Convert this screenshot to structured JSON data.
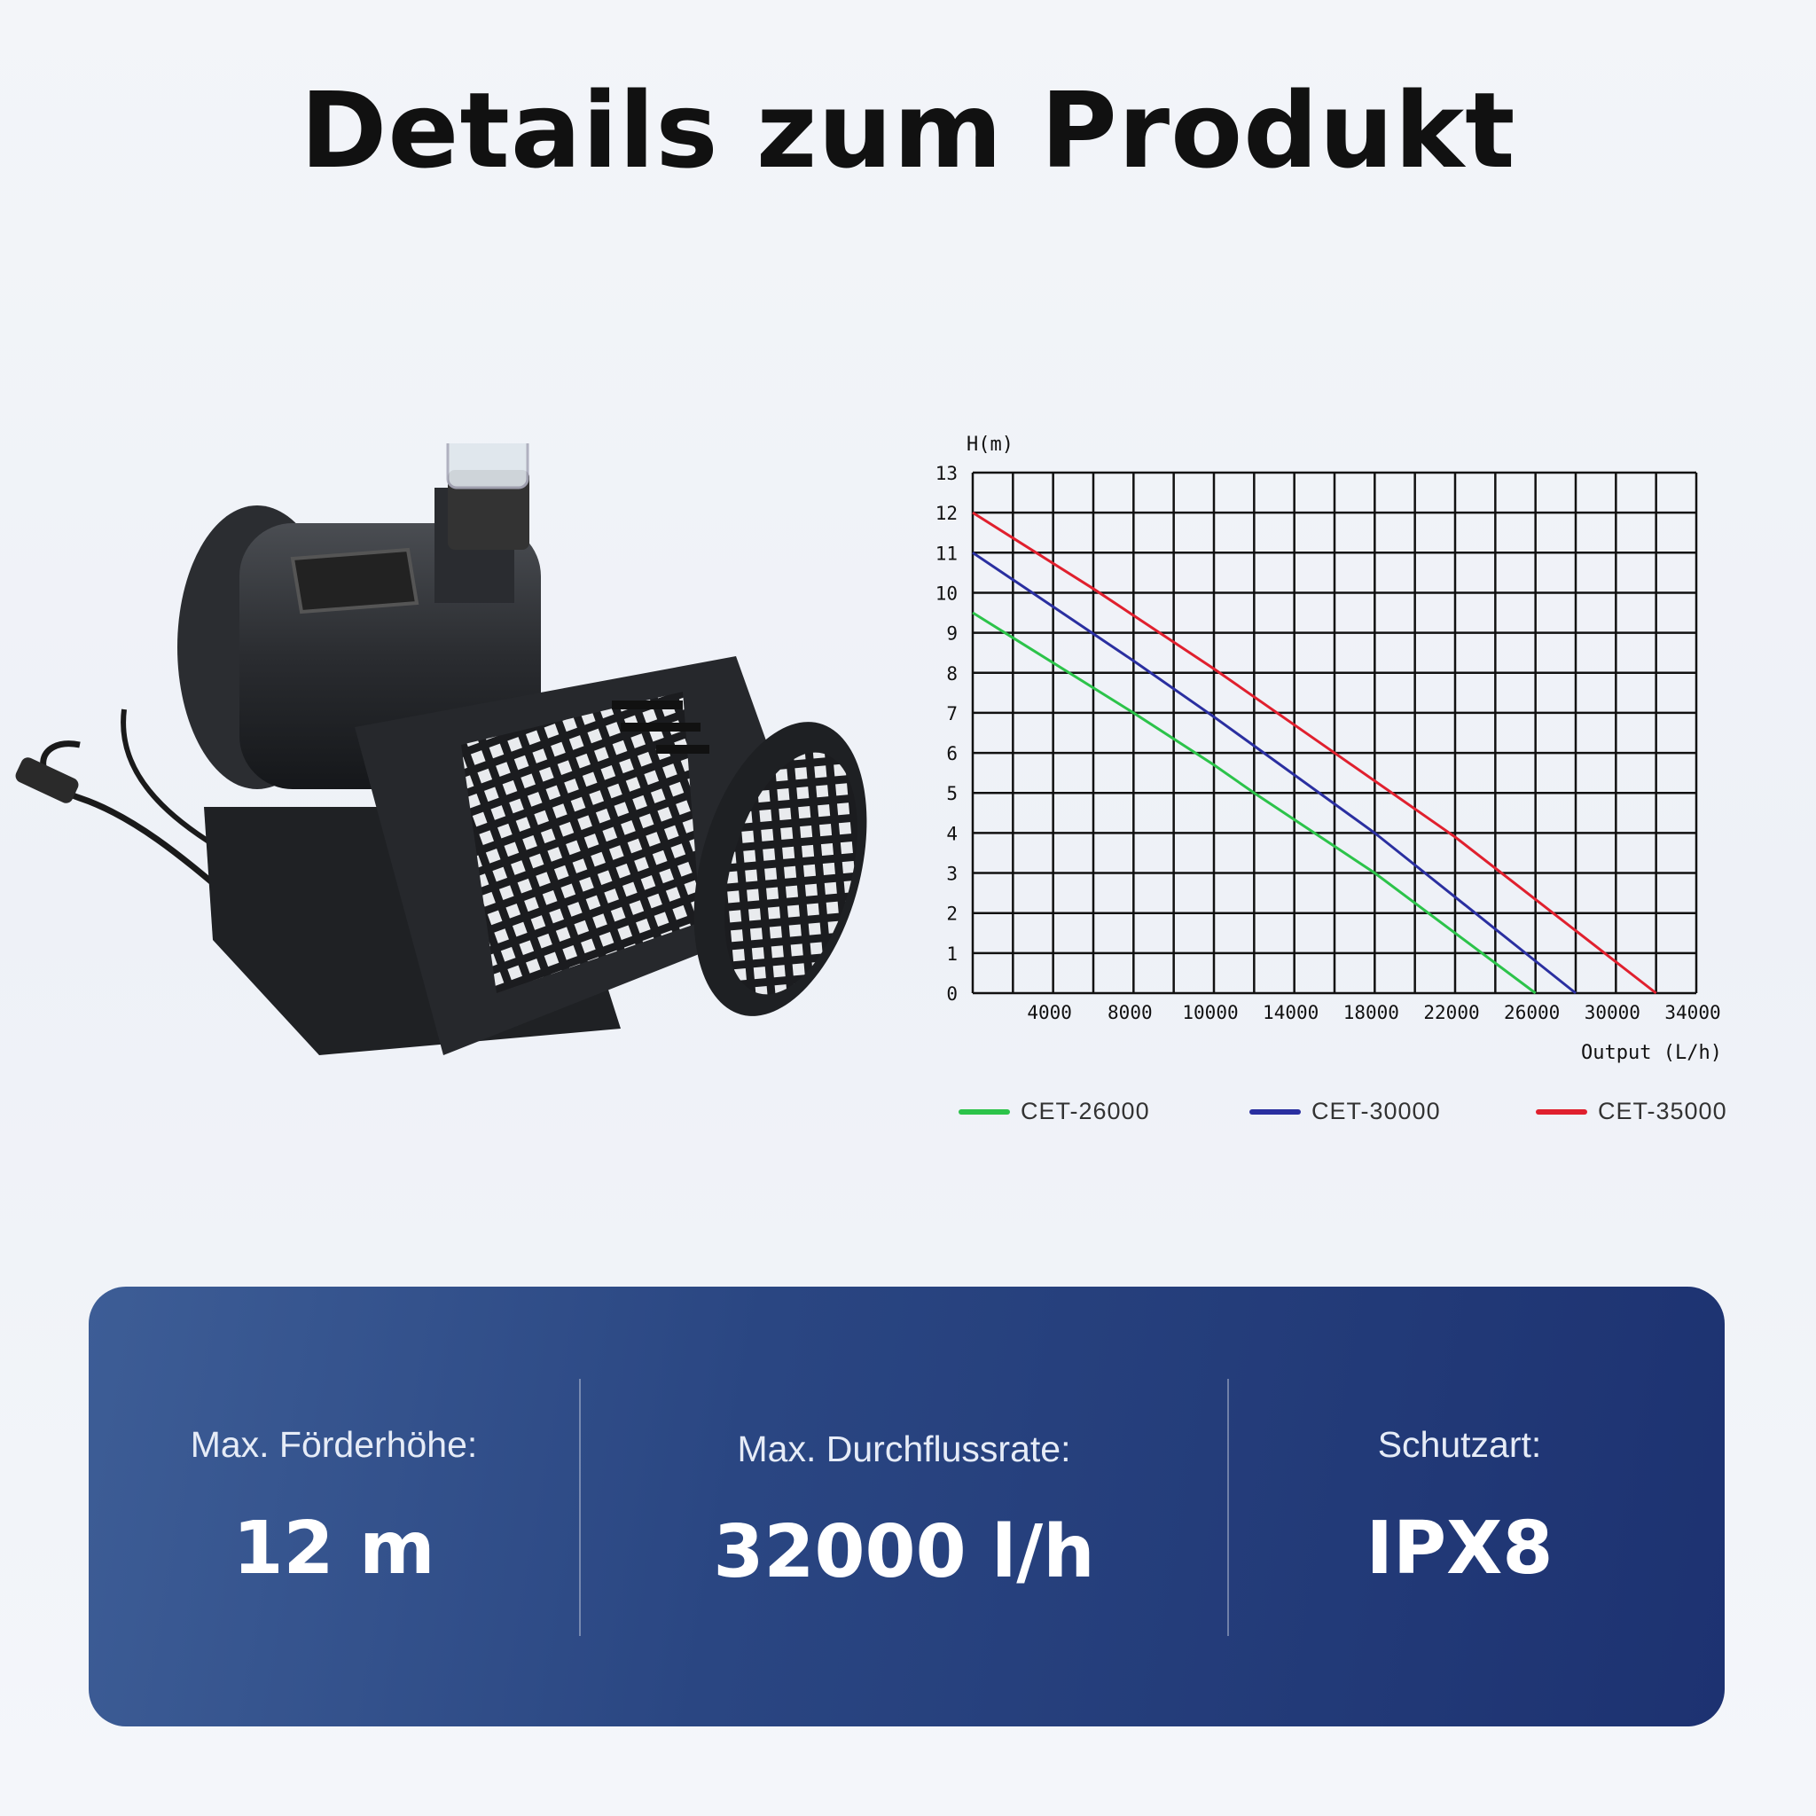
{
  "title": "Details zum Produkt",
  "product_image": {
    "icon": "pond-pump-illustration"
  },
  "chart_data": {
    "type": "line",
    "title": "",
    "ylabel": "H(m)",
    "xlabel": "Output (L/h)",
    "ylim": [
      0,
      13
    ],
    "yticks": [
      "0",
      "1",
      "2",
      "3",
      "4",
      "5",
      "6",
      "7",
      "8",
      "9",
      "10",
      "11",
      "12",
      "13"
    ],
    "xticks": [
      "4000",
      "8000",
      "10000",
      "14000",
      "18000",
      "22000",
      "26000",
      "30000",
      "34000"
    ],
    "grid": true,
    "legend_placement": "bottom",
    "series": [
      {
        "name": "CET-26000",
        "color": "#2cc34a",
        "points": [
          [
            0,
            9.5
          ],
          [
            8000,
            7.0
          ],
          [
            10000,
            5.7
          ],
          [
            12000,
            5.0
          ],
          [
            18000,
            3.0
          ],
          [
            26000,
            0
          ]
        ]
      },
      {
        "name": "CET-30000",
        "color": "#2a2fa0",
        "points": [
          [
            0,
            11
          ],
          [
            8000,
            8.3
          ],
          [
            10000,
            6.9
          ],
          [
            18000,
            4.0
          ],
          [
            26000,
            0.8
          ],
          [
            28000,
            0
          ]
        ]
      },
      {
        "name": "CET-35000",
        "color": "#e0202e",
        "points": [
          [
            0,
            12
          ],
          [
            6000,
            10.1
          ],
          [
            10000,
            8.1
          ],
          [
            16000,
            6.0
          ],
          [
            22000,
            3.9
          ],
          [
            32000,
            0
          ]
        ]
      }
    ]
  },
  "specs": [
    {
      "label": "Max. Förderhöhe:",
      "value": "12 m"
    },
    {
      "label": "Max. Durchflussrate:",
      "value": "32000 l/h"
    },
    {
      "label": "Schutzart:",
      "value": "IPX8"
    }
  ]
}
